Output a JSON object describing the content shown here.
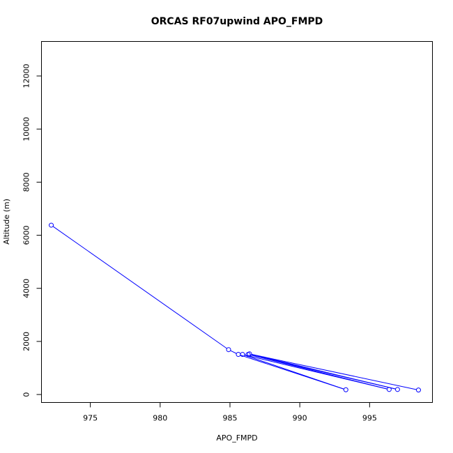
{
  "chart_data": {
    "type": "line",
    "title": "ORCAS RF07upwind APO_FMPD",
    "xlabel": "APO_FMPD",
    "ylabel": "Altitude (m)",
    "xlim": [
      971.5,
      999.5
    ],
    "ylim": [
      -300,
      13300
    ],
    "xticks": [
      975,
      980,
      985,
      990,
      995
    ],
    "yticks": [
      0,
      2000,
      4000,
      6000,
      8000,
      10000,
      12000
    ],
    "xtick_labels": [
      "975",
      "980",
      "985",
      "990",
      "995"
    ],
    "ytick_labels": [
      "0",
      "2000",
      "4000",
      "6000",
      "8000",
      "10000",
      "12000"
    ],
    "grid": false,
    "series": [
      {
        "color": "#0000ff",
        "marker": "open-circle",
        "points": [
          {
            "x": 972.2,
            "y": 6380
          },
          {
            "x": 984.9,
            "y": 1690
          },
          {
            "x": 985.6,
            "y": 1510
          },
          {
            "x": 993.3,
            "y": 180
          },
          {
            "x": 985.9,
            "y": 1510
          },
          {
            "x": 996.4,
            "y": 190
          },
          {
            "x": 986.3,
            "y": 1510
          },
          {
            "x": 997.0,
            "y": 190
          },
          {
            "x": 986.4,
            "y": 1530
          },
          {
            "x": 998.5,
            "y": 170
          }
        ]
      }
    ]
  }
}
